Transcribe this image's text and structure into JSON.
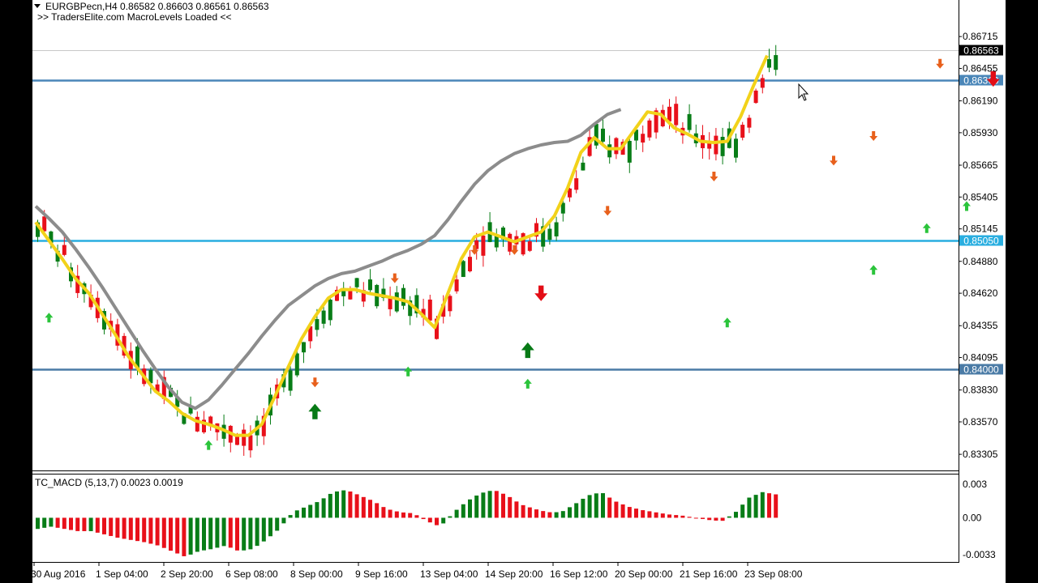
{
  "header": {
    "symbol_line": "EURGBPecn,H4  0.86582 0.86603 0.86561 0.86563",
    "loaded_msg": ">> TradersElite.com MacroLevels Loaded <<"
  },
  "indicator_label": "TC_MACD (5,13,7) 0.0023 0.0019",
  "colors": {
    "bull": "#087D17",
    "bear": "#E8101A",
    "fast_ma": "#F2D21A",
    "slow_ma": "#8C8C8C",
    "level_line": "#4A86B8",
    "up_arrow_small": "#2BC43B",
    "down_arrow_small": "#E8601C",
    "up_arrow_big": "#077A16",
    "down_arrow_big": "#E30D16"
  },
  "chart_data": {
    "type": "candlestick",
    "symbol": "EURGBPecn",
    "timeframe": "H4",
    "price_axis": {
      "ylim": [
        0.8318,
        0.87
      ],
      "ticks": [
        "0.86715",
        "0.86455",
        "0.86190",
        "0.85930",
        "0.85665",
        "0.85405",
        "0.85145",
        "0.84880",
        "0.84620",
        "0.84355",
        "0.84095",
        "0.83830",
        "0.83570",
        "0.83305"
      ]
    },
    "time_axis": {
      "labels": [
        "30 Aug 2016",
        "1 Sep 04:00",
        "2 Sep 20:00",
        "6 Sep 08:00",
        "8 Sep 00:00",
        "9 Sep 16:00",
        "13 Sep 04:00",
        "14 Sep 20:00",
        "16 Sep 12:00",
        "20 Sep 00:00",
        "21 Sep 16:00",
        "23 Sep 08:00"
      ]
    },
    "current_price": "0.86563",
    "levels": [
      {
        "label": "0.86360",
        "value": 0.8636,
        "color": "#4A86B8"
      },
      {
        "label": "0.85050",
        "value": 0.8505,
        "color": "#29AEE0"
      },
      {
        "label": "0.84000",
        "value": 0.84,
        "color": "#4A7BA6"
      }
    ],
    "fast_ma": [
      0.852,
      0.8505,
      0.849,
      0.8474,
      0.8462,
      0.8445,
      0.8428,
      0.841,
      0.8396,
      0.8382,
      0.8374,
      0.8364,
      0.8358,
      0.8355,
      0.8351,
      0.8346,
      0.8346,
      0.8355,
      0.8378,
      0.8402,
      0.8425,
      0.8443,
      0.8458,
      0.8465,
      0.8465,
      0.8462,
      0.846,
      0.8458,
      0.8455,
      0.8445,
      0.8434,
      0.8462,
      0.849,
      0.8508,
      0.8512,
      0.8508,
      0.8504,
      0.8508,
      0.8512,
      0.8525,
      0.8548,
      0.8577,
      0.8589,
      0.858,
      0.858,
      0.8595,
      0.861,
      0.8608,
      0.8597,
      0.8592,
      0.8586,
      0.8585,
      0.8586,
      0.8606,
      0.8632,
      0.8656
    ],
    "slow_ma": [
      0.8533,
      0.8523,
      0.8512,
      0.8498,
      0.8483,
      0.8467,
      0.845,
      0.8433,
      0.8416,
      0.84,
      0.8385,
      0.8373,
      0.8368,
      0.8375,
      0.8387,
      0.84,
      0.8413,
      0.8427,
      0.844,
      0.8452,
      0.846,
      0.8468,
      0.8474,
      0.8478,
      0.848,
      0.8484,
      0.8488,
      0.8493,
      0.8497,
      0.8502,
      0.8509,
      0.8522,
      0.8537,
      0.8551,
      0.8562,
      0.857,
      0.8576,
      0.858,
      0.8583,
      0.8585,
      0.8586,
      0.8591,
      0.86,
      0.8608,
      0.8612
    ],
    "ma_last_update": "23 Sep 08:00",
    "signals": {
      "up_small": [
        [
          1,
          0.8454
        ],
        [
          13,
          0.835
        ],
        [
          28,
          0.841
        ],
        [
          37,
          0.84
        ],
        [
          52,
          0.845
        ],
        [
          63,
          0.8493
        ],
        [
          67,
          0.8527
        ],
        [
          70,
          0.8545
        ],
        [
          75,
          0.8552
        ]
      ],
      "down_small": [
        [
          21,
          0.838
        ],
        [
          27,
          0.8465
        ],
        [
          33,
          0.8488
        ],
        [
          36,
          0.8488
        ],
        [
          43,
          0.852
        ],
        [
          51,
          0.8548
        ],
        [
          60,
          0.8561
        ],
        [
          63,
          0.8581
        ],
        [
          68,
          0.864
        ],
        [
          72,
          0.8711
        ]
      ],
      "up_big": [
        [
          21,
          0.838
        ],
        [
          37,
          0.843
        ],
        [
          75,
          0.8568
        ]
      ],
      "down_big": [
        [
          38,
          0.845
        ],
        [
          72,
          0.8625
        ]
      ]
    },
    "macd": {
      "label": "TC_MACD (5,13,7)",
      "value": "0.0023",
      "signal": "0.0019",
      "ylim": [
        -0.0036,
        0.0033
      ],
      "ticks": [
        "0.003",
        "0.00",
        "-0.0033"
      ],
      "values": [
        -0.001,
        -0.0008,
        -0.001,
        -0.0012,
        -0.0012,
        -0.0015,
        -0.0018,
        -0.002,
        -0.0022,
        -0.0025,
        -0.003,
        -0.0035,
        -0.003,
        -0.0028,
        -0.0025,
        -0.003,
        -0.0028,
        -0.002,
        -0.001,
        0.0005,
        0.001,
        0.0015,
        0.0023,
        0.0025,
        0.002,
        0.0015,
        0.0008,
        0.0005,
        0.0004,
        -0.0003,
        -0.0008,
        0.0005,
        0.0015,
        0.0022,
        0.0025,
        0.002,
        0.0012,
        0.0008,
        0.0005,
        0.0005,
        0.0012,
        0.002,
        0.0023,
        0.0015,
        0.001,
        0.0007,
        0.0005,
        0.0003,
        0.0002,
        0.0,
        -0.0002,
        -0.0003,
        0.0005,
        0.0018,
        0.0023,
        0.0021
      ],
      "macd_values": [
        -0.001,
        -0.0009,
        -0.001,
        -0.0012,
        -0.0013,
        -0.0016,
        -0.0018,
        -0.002,
        -0.0023,
        -0.0026,
        -0.0031,
        -0.0035,
        -0.0032,
        -0.0029,
        -0.0026,
        -0.003,
        -0.0028,
        -0.002,
        -0.001,
        0.0005,
        0.0012,
        0.0018,
        0.0025,
        0.0027,
        0.0022,
        0.0018,
        0.001,
        0.0006,
        0.0004,
        -0.0002,
        -0.0008,
        0.0006,
        0.0016,
        0.0023,
        0.0025,
        0.002,
        0.0013,
        0.0008,
        0.0005,
        0.0005,
        0.0012,
        0.0022,
        0.0027,
        0.0016,
        0.001,
        0.0007,
        0.0005,
        0.0003,
        0.0002,
        0.0,
        -0.0002,
        -0.0004,
        0.0006,
        0.002,
        0.0027,
        0.0023
      ]
    }
  }
}
